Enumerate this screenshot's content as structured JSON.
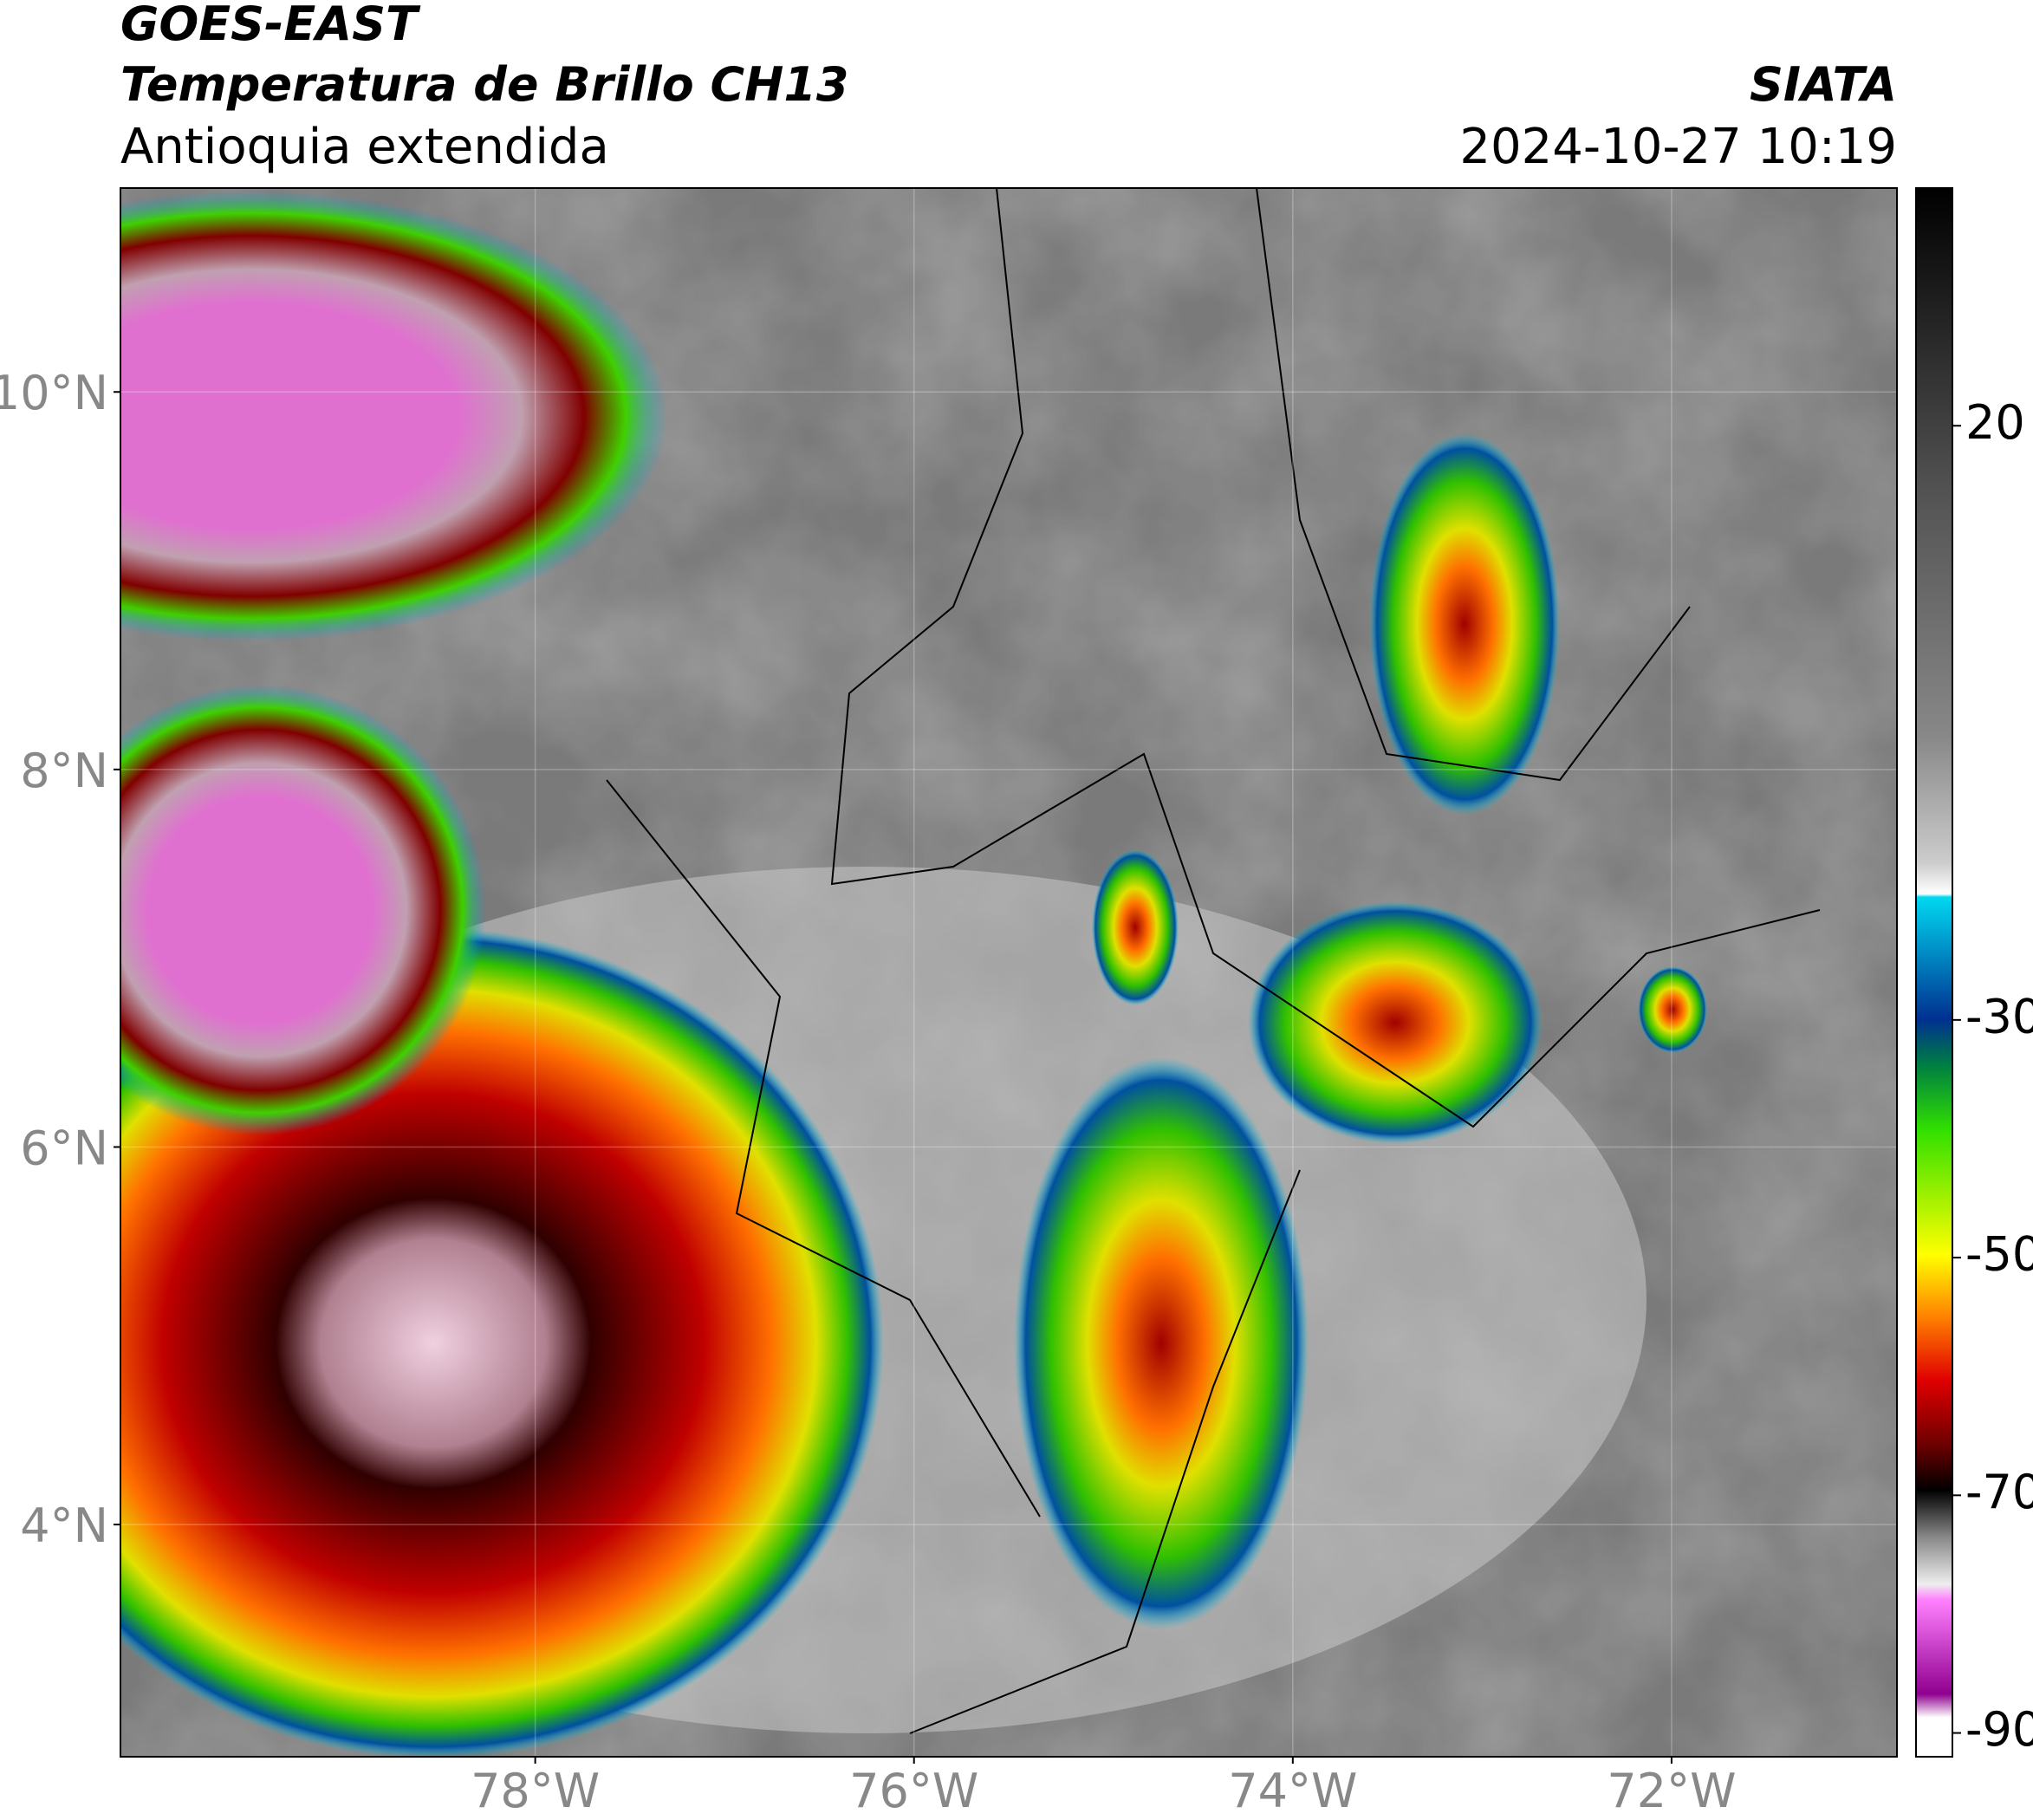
{
  "header": {
    "satellite": "GOES-EAST",
    "product": "Temperatura de Brillo CH13",
    "region": "Antioquia extendida",
    "agency": "SIATA",
    "datetime": "2024-10-27 10:19"
  },
  "map": {
    "xlim": [
      -80.19,
      -70.81
    ],
    "ylim": [
      2.77,
      11.08
    ],
    "grid": true,
    "xticks": [
      {
        "value": -78,
        "label": "78°W"
      },
      {
        "value": -76,
        "label": "76°W"
      },
      {
        "value": -74,
        "label": "74°W"
      },
      {
        "value": -72,
        "label": "72°W"
      }
    ],
    "yticks": [
      {
        "value": 10,
        "label": "10°N"
      },
      {
        "value": 8,
        "label": "8°N"
      },
      {
        "value": 6,
        "label": "6°N"
      },
      {
        "value": 4,
        "label": "4°N"
      }
    ]
  },
  "colorbar": {
    "lim": [
      -92,
      40
    ],
    "ticks": [
      20,
      -30,
      -50,
      -70,
      -90
    ]
  }
}
